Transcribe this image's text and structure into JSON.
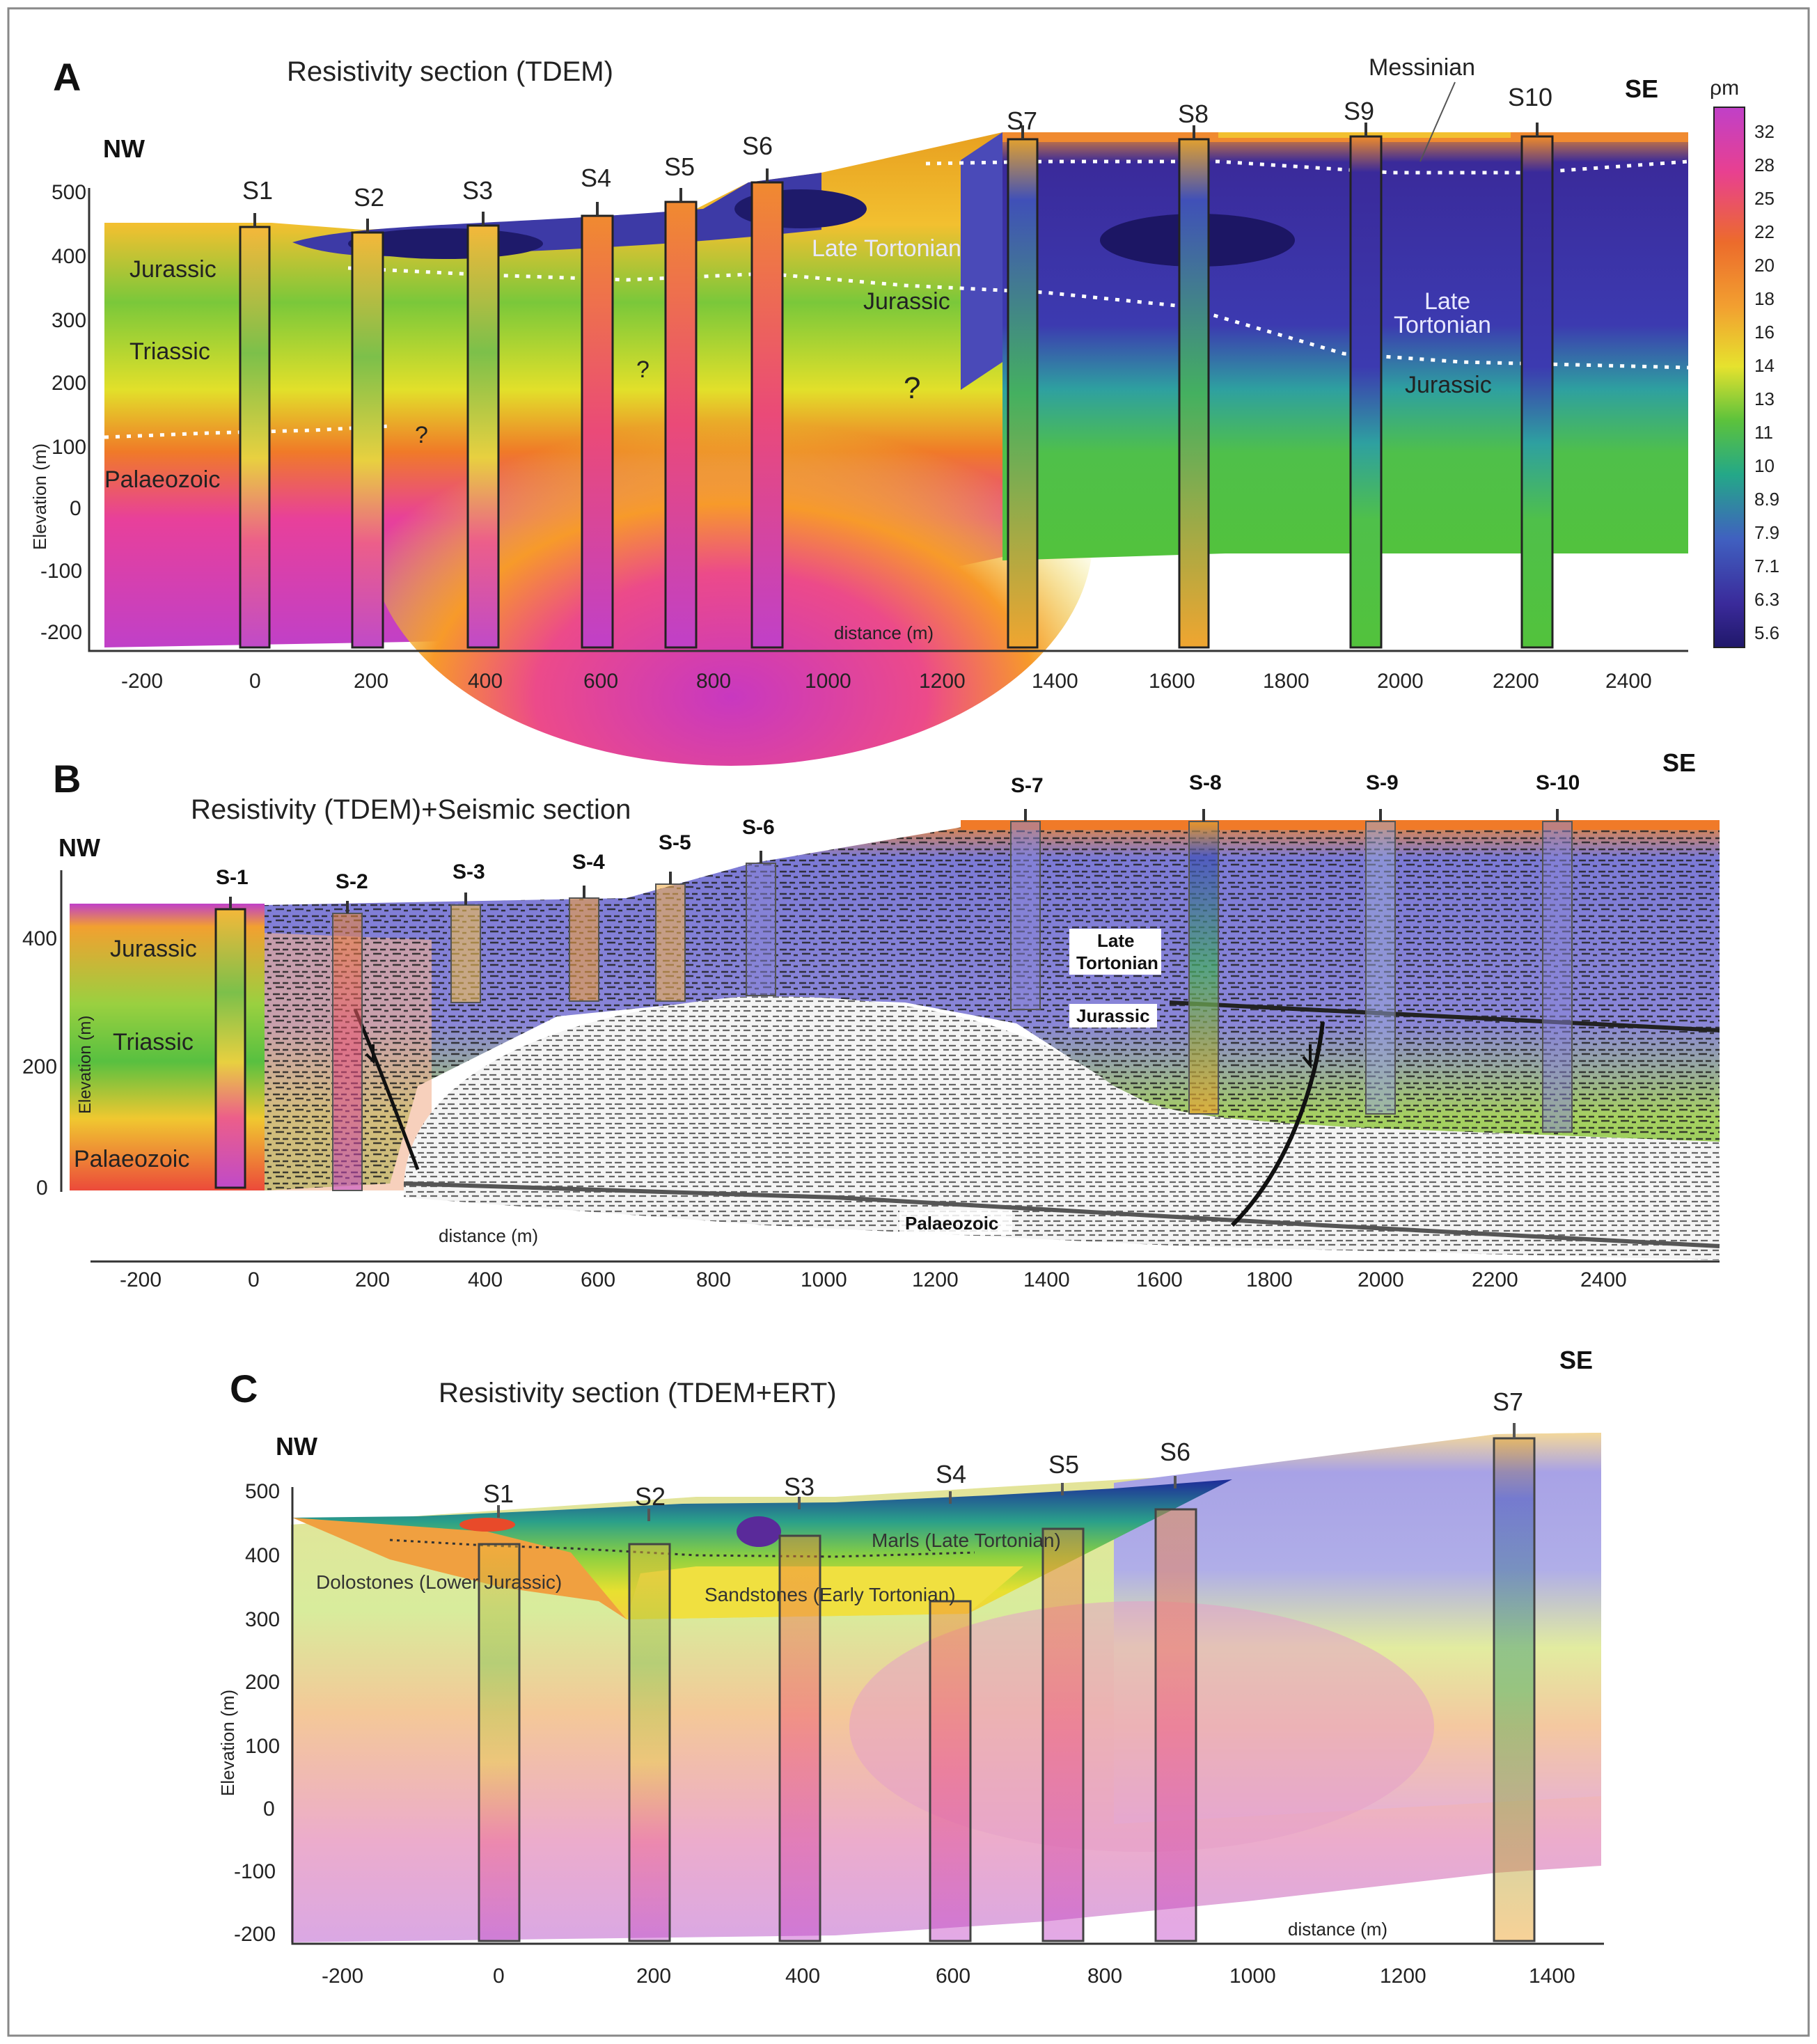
{
  "panels": {
    "a": {
      "letter": "A",
      "title": "Resistivity section (TDEM)",
      "nw": "NW",
      "se": "SE",
      "y_label": "Elevation (m)",
      "x_label": "distance (m)",
      "x_ticks": [
        "-200",
        "0",
        "200",
        "400",
        "600",
        "800",
        "1000",
        "1200",
        "1400",
        "1600",
        "1800",
        "2000",
        "2200",
        "2400"
      ],
      "y_ticks": [
        "500",
        "400",
        "300",
        "200",
        "100",
        "0",
        "-100",
        "-200"
      ],
      "stations": [
        "S1",
        "S2",
        "S3",
        "S4",
        "S5",
        "S6",
        "S7",
        "S8",
        "S9",
        "S10"
      ],
      "units": {
        "messinian": "Messinian",
        "jurassic_left": "Jurassic",
        "triassic": "Triassic",
        "palaeozoic": "Palaeozoic",
        "late_tortonian": "Late Tortonian",
        "jurassic_mid": "Jurassic",
        "late_tortonian_right_1": "Late",
        "late_tortonian_right_2": "Tortonian",
        "jurassic_right": "Jurassic",
        "q1": "?",
        "q2": "?",
        "q3": "?"
      },
      "colorbar": {
        "unit": "ρm",
        "labels": [
          "32",
          "28",
          "25",
          "22",
          "20",
          "18",
          "16",
          "14",
          "13",
          "11",
          "10",
          "8.9",
          "7.9",
          "7.1",
          "6.3",
          "5.6"
        ]
      }
    },
    "b": {
      "letter": "B",
      "title": "Resistivity (TDEM)+Seismic section",
      "nw": "NW",
      "se": "SE",
      "y_label": "Elevation (m)",
      "x_label": "distance (m)",
      "x_ticks": [
        "-200",
        "0",
        "200",
        "400",
        "600",
        "800",
        "1000",
        "1200",
        "1400",
        "1600",
        "1800",
        "2000",
        "2200",
        "2400"
      ],
      "y_ticks": [
        "400",
        "200",
        "0"
      ],
      "stations": [
        "S-1",
        "S-2",
        "S-3",
        "S-4",
        "S-5",
        "S-6",
        "S-7",
        "S-8",
        "S-9",
        "S-10"
      ],
      "units": {
        "jurassic_left": "Jurassic",
        "triassic": "Triassic",
        "palaeozoic_left": "Palaeozoic",
        "late_tortonian_1": "Late",
        "late_tortonian_2": "Tortonian",
        "jurassic_mid": "Jurassic",
        "palaeozoic_bottom": "Palaeozoic"
      }
    },
    "c": {
      "letter": "C",
      "title": "Resistivity section (TDEM+ERT)",
      "nw": "NW",
      "se": "SE",
      "y_label": "Elevation (m)",
      "x_label": "distance (m)",
      "x_ticks": [
        "-200",
        "0",
        "200",
        "400",
        "600",
        "800",
        "1000",
        "1200",
        "1400"
      ],
      "y_ticks": [
        "500",
        "400",
        "300",
        "200",
        "100",
        "0",
        "-100",
        "-200"
      ],
      "stations": [
        "S1",
        "S2",
        "S3",
        "S4",
        "S5",
        "S6",
        "S7"
      ],
      "units": {
        "dolostones": "Dolostones (Lower Jurassic)",
        "marls": "Marls (Late Tortonian)",
        "sandstones": "Sandstones (Early Tortonian)"
      }
    }
  }
}
